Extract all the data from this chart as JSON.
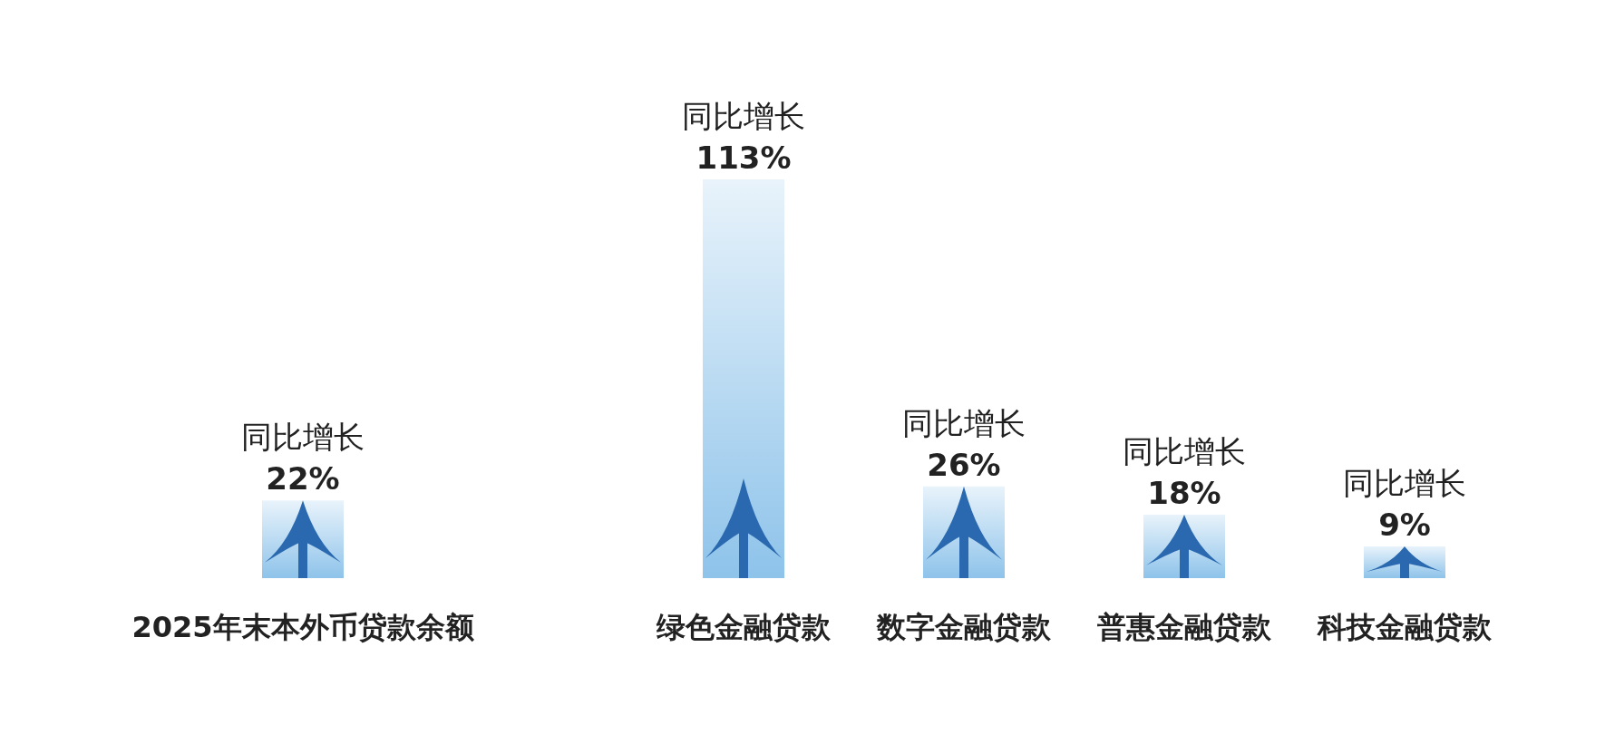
{
  "chart_data": {
    "type": "bar",
    "categories": [
      "2025年末本外币贷款余额",
      null,
      "绿色金融贷款",
      "数字金融贷款",
      "普惠金融贷款",
      "科技金融贷款"
    ],
    "values": [
      22,
      null,
      113,
      26,
      18,
      9
    ],
    "value_labels": [
      "同比增长\n22%",
      null,
      "同比增长\n113%",
      "同比增长\n26%",
      "同比增长\n18%",
      "同比增长\n9%"
    ],
    "color": "#8ec3ea"
  }
}
